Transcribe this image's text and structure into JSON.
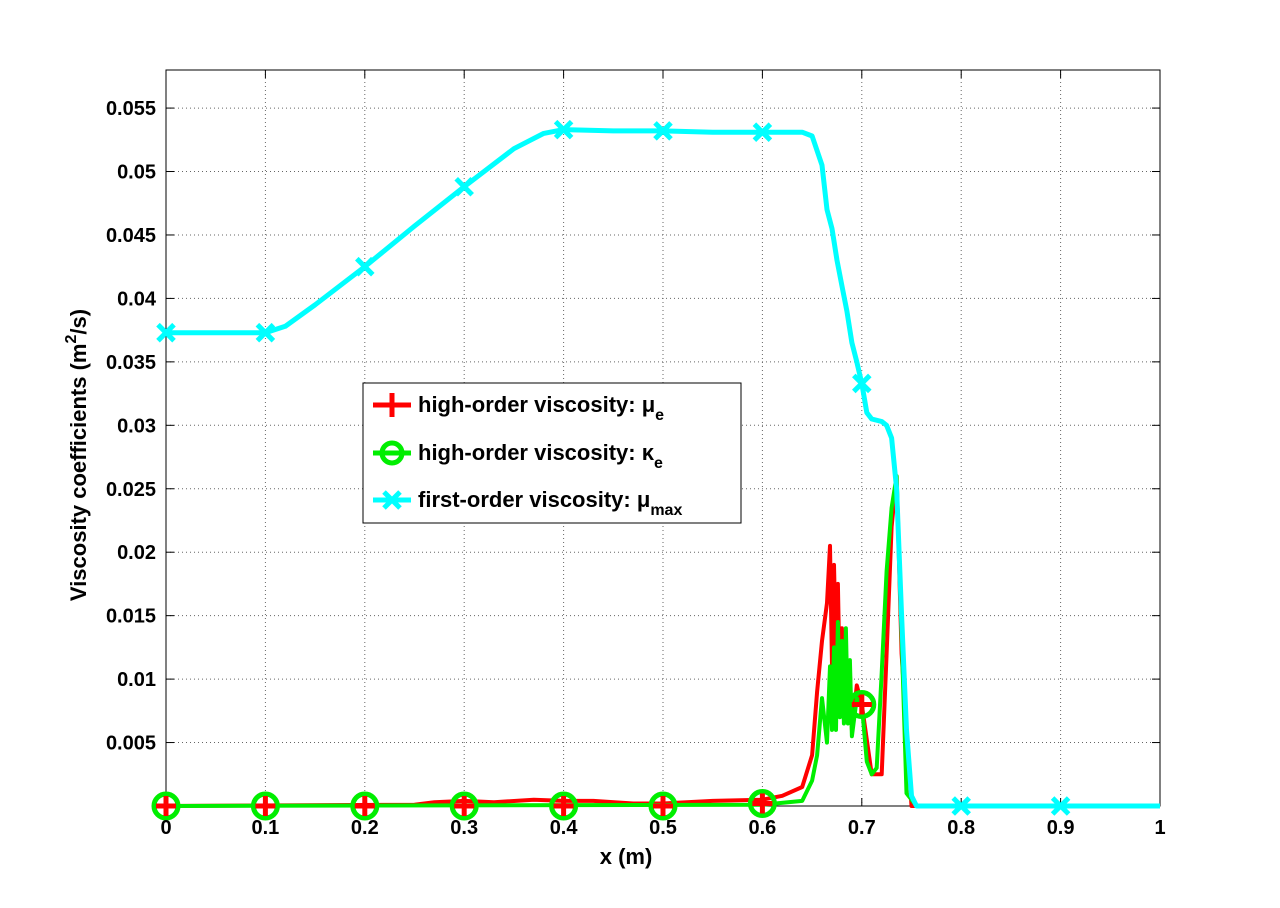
{
  "chart_data": {
    "type": "line",
    "xlabel": "x (m)",
    "ylabel_main": "Viscosity coefficients (m",
    "ylabel_sup": "2",
    "ylabel_end": "/s)",
    "xlim": [
      0,
      1
    ],
    "ylim": [
      0,
      0.058
    ],
    "x_ticks": [
      0,
      0.1,
      0.2,
      0.3,
      0.4,
      0.5,
      0.6,
      0.7,
      0.8,
      0.9,
      1
    ],
    "x_tick_labels": [
      "0",
      "0.1",
      "0.2",
      "0.3",
      "0.4",
      "0.5",
      "0.6",
      "0.7",
      "0.8",
      "0.9",
      "1"
    ],
    "y_ticks": [
      0.005,
      0.01,
      0.015,
      0.02,
      0.025,
      0.03,
      0.035,
      0.04,
      0.045,
      0.05,
      0.055
    ],
    "y_tick_labels": [
      "0.005",
      "0.01",
      "0.015",
      "0.02",
      "0.025",
      "0.03",
      "0.035",
      "0.04",
      "0.045",
      "0.05",
      "0.055"
    ],
    "grid": true,
    "legend_position": "center-left",
    "series": [
      {
        "name_main": "high-order viscosity: μ",
        "name_sub": "e",
        "color": "#ff0000",
        "marker": "plus",
        "x": [
          0,
          0.25,
          0.27,
          0.3,
          0.33,
          0.37,
          0.4,
          0.43,
          0.47,
          0.5,
          0.55,
          0.6,
          0.62,
          0.64,
          0.65,
          0.655,
          0.66,
          0.665,
          0.668,
          0.67,
          0.672,
          0.674,
          0.676,
          0.678,
          0.68,
          0.682,
          0.684,
          0.686,
          0.688,
          0.69,
          0.695,
          0.7,
          0.71,
          0.72,
          0.725,
          0.73,
          0.735,
          0.74,
          0.75,
          1
        ],
        "y": [
          0,
          0.0001,
          0.0003,
          0.0004,
          0.0003,
          0.0005,
          0.0004,
          0.0004,
          0.0002,
          0.0002,
          0.0004,
          0.0005,
          0.0008,
          0.0015,
          0.004,
          0.009,
          0.013,
          0.016,
          0.0205,
          0.011,
          0.019,
          0.012,
          0.0175,
          0.009,
          0.014,
          0.0085,
          0.012,
          0.0075,
          0.0105,
          0.006,
          0.0095,
          0.008,
          0.0025,
          0.0025,
          0.012,
          0.022,
          0.026,
          0.012,
          0,
          0
        ],
        "marker_x": [
          0,
          0.1,
          0.2,
          0.3,
          0.4,
          0.5,
          0.6,
          0.7
        ],
        "marker_y": [
          0,
          0,
          0,
          0,
          0,
          0,
          0.0002,
          0.008
        ]
      },
      {
        "name_main": "high-order viscosity: κ",
        "name_sub": "e",
        "color": "#00ee00",
        "marker": "circle",
        "x": [
          0,
          0.6,
          0.64,
          0.65,
          0.655,
          0.66,
          0.665,
          0.668,
          0.67,
          0.672,
          0.674,
          0.676,
          0.678,
          0.68,
          0.682,
          0.684,
          0.686,
          0.688,
          0.69,
          0.695,
          0.7,
          0.705,
          0.71,
          0.715,
          0.72,
          0.725,
          0.73,
          0.735,
          0.745,
          0.755,
          1
        ],
        "y": [
          0,
          0.0001,
          0.0004,
          0.002,
          0.004,
          0.0085,
          0.005,
          0.011,
          0.006,
          0.0125,
          0.006,
          0.0145,
          0.007,
          0.013,
          0.0065,
          0.014,
          0.0065,
          0.0115,
          0.0055,
          0.0085,
          0.008,
          0.0035,
          0.0025,
          0.003,
          0.0105,
          0.0185,
          0.0235,
          0.026,
          0.001,
          0,
          0
        ],
        "marker_x": [
          0,
          0.1,
          0.2,
          0.3,
          0.4,
          0.5,
          0.6,
          0.7
        ],
        "marker_y": [
          0,
          0,
          0,
          0,
          0,
          0,
          0.0002,
          0.008
        ]
      },
      {
        "name_main": "first-order viscosity: μ",
        "name_sub": "max",
        "color": "#00ffff",
        "marker": "x",
        "x": [
          0,
          0.1,
          0.12,
          0.15,
          0.2,
          0.25,
          0.3,
          0.35,
          0.38,
          0.4,
          0.45,
          0.5,
          0.55,
          0.6,
          0.64,
          0.65,
          0.66,
          0.665,
          0.67,
          0.675,
          0.68,
          0.685,
          0.69,
          0.695,
          0.7,
          0.705,
          0.71,
          0.72,
          0.725,
          0.73,
          0.735,
          0.74,
          0.745,
          0.75,
          0.755,
          1
        ],
        "y": [
          0.0373,
          0.0373,
          0.0378,
          0.0395,
          0.0425,
          0.0457,
          0.0488,
          0.0518,
          0.053,
          0.0533,
          0.0532,
          0.0532,
          0.0531,
          0.0531,
          0.0531,
          0.0528,
          0.0505,
          0.047,
          0.0455,
          0.043,
          0.041,
          0.039,
          0.0365,
          0.035,
          0.0333,
          0.031,
          0.0305,
          0.0303,
          0.03,
          0.029,
          0.025,
          0.015,
          0.006,
          0.0008,
          0,
          0
        ],
        "marker_x": [
          0,
          0.1,
          0.2,
          0.3,
          0.4,
          0.5,
          0.6,
          0.7,
          0.8,
          0.9
        ],
        "marker_y": [
          0.0373,
          0.0373,
          0.0425,
          0.0488,
          0.0533,
          0.0532,
          0.0531,
          0.0333,
          0,
          0
        ]
      }
    ]
  }
}
